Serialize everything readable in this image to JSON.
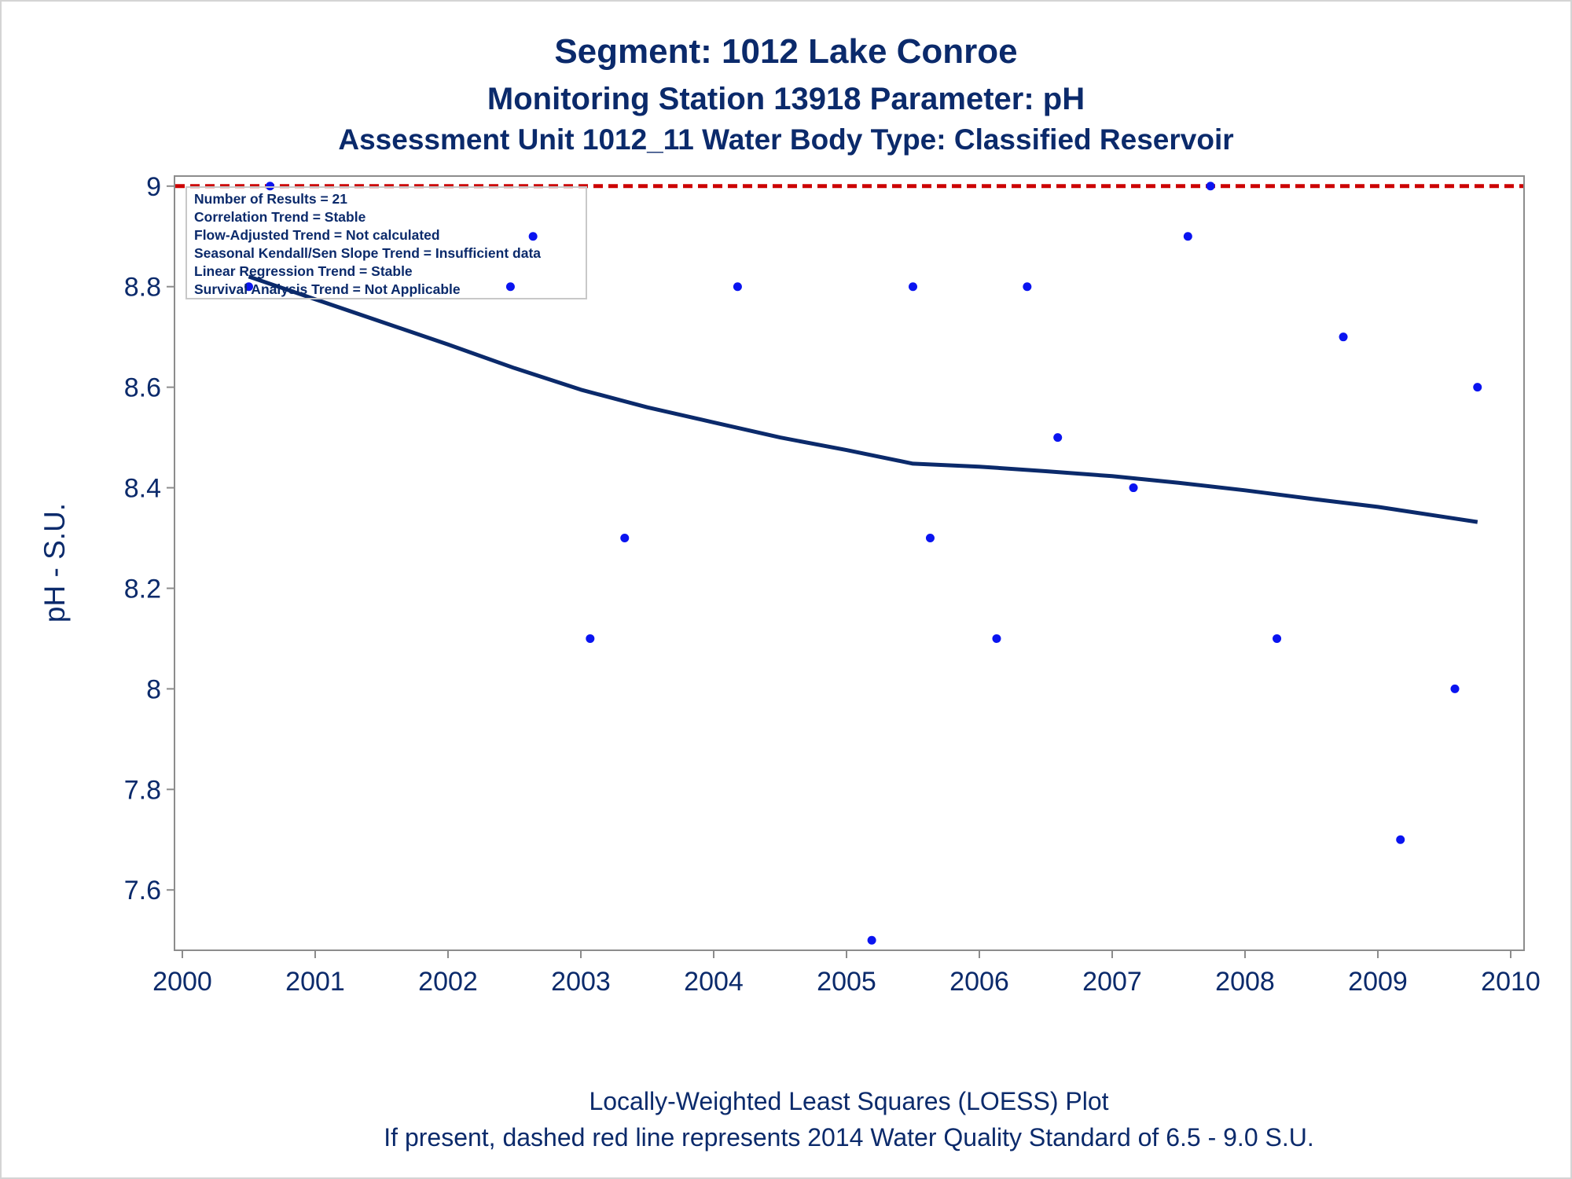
{
  "titles": {
    "line1": "Segment: 1012  Lake Conroe",
    "line2": "Monitoring Station 13918 Parameter: pH",
    "line3": "Assessment Unit 1012_11   Water Body Type: Classified Reservoir"
  },
  "footnotes": {
    "line1": "Locally-Weighted Least Squares (LOESS) Plot",
    "line2": "If present, dashed red line represents 2014 Water Quality Standard of 6.5 - 9.0 S.U."
  },
  "stats_box": [
    "Number of Results = 21",
    "Correlation Trend = Stable",
    "Flow-Adjusted Trend = Not calculated",
    "Seasonal Kendall/Sen Slope Trend = Insufficient data",
    "Linear Regression Trend = Stable",
    "Survival Analysis Trend = Not Applicable"
  ],
  "colors": {
    "points": "#0a14f0",
    "loess": "#0b2a6b",
    "standard_line": "#cc0000",
    "text": "#0b2a6b"
  },
  "chart_data": {
    "type": "scatter",
    "ylabel": "pH - S.U.",
    "xlabel": "",
    "xlim": [
      2000,
      2010
    ],
    "ylim": [
      7.48,
      9.02
    ],
    "xticks": [
      2000,
      2001,
      2002,
      2003,
      2004,
      2005,
      2006,
      2007,
      2008,
      2009,
      2010
    ],
    "yticks": [
      7.6,
      7.8,
      8,
      8.2,
      8.4,
      8.6,
      8.8,
      9
    ],
    "grid": false,
    "series": [
      {
        "kind": "points",
        "x": [
          2000.5,
          2000.66,
          2002.47,
          2002.64,
          2003.07,
          2003.33,
          2004.18,
          2005.19,
          2005.5,
          2005.63,
          2006.13,
          2006.36,
          2006.59,
          2007.16,
          2007.57,
          2007.74,
          2008.24,
          2008.74,
          2009.17,
          2009.58,
          2009.75
        ],
        "y": [
          8.8,
          9.0,
          8.8,
          8.9,
          8.1,
          8.3,
          8.8,
          7.5,
          8.8,
          8.3,
          8.1,
          8.8,
          8.5,
          8.4,
          8.9,
          9.0,
          8.1,
          8.7,
          7.7,
          8.0,
          8.6
        ]
      },
      {
        "kind": "loess",
        "x": [
          2000.5,
          2001.0,
          2001.5,
          2002.0,
          2002.5,
          2003.0,
          2003.5,
          2004.0,
          2004.5,
          2005.0,
          2005.5,
          2006.0,
          2006.5,
          2007.0,
          2007.5,
          2008.0,
          2008.5,
          2009.0,
          2009.5,
          2009.75
        ],
        "y": [
          8.82,
          8.775,
          8.73,
          8.685,
          8.638,
          8.595,
          8.56,
          8.53,
          8.5,
          8.475,
          8.448,
          8.442,
          8.433,
          8.423,
          8.41,
          8.395,
          8.378,
          8.362,
          8.342,
          8.332
        ]
      },
      {
        "kind": "reference",
        "y": 9.0,
        "style": "dashed"
      }
    ]
  }
}
